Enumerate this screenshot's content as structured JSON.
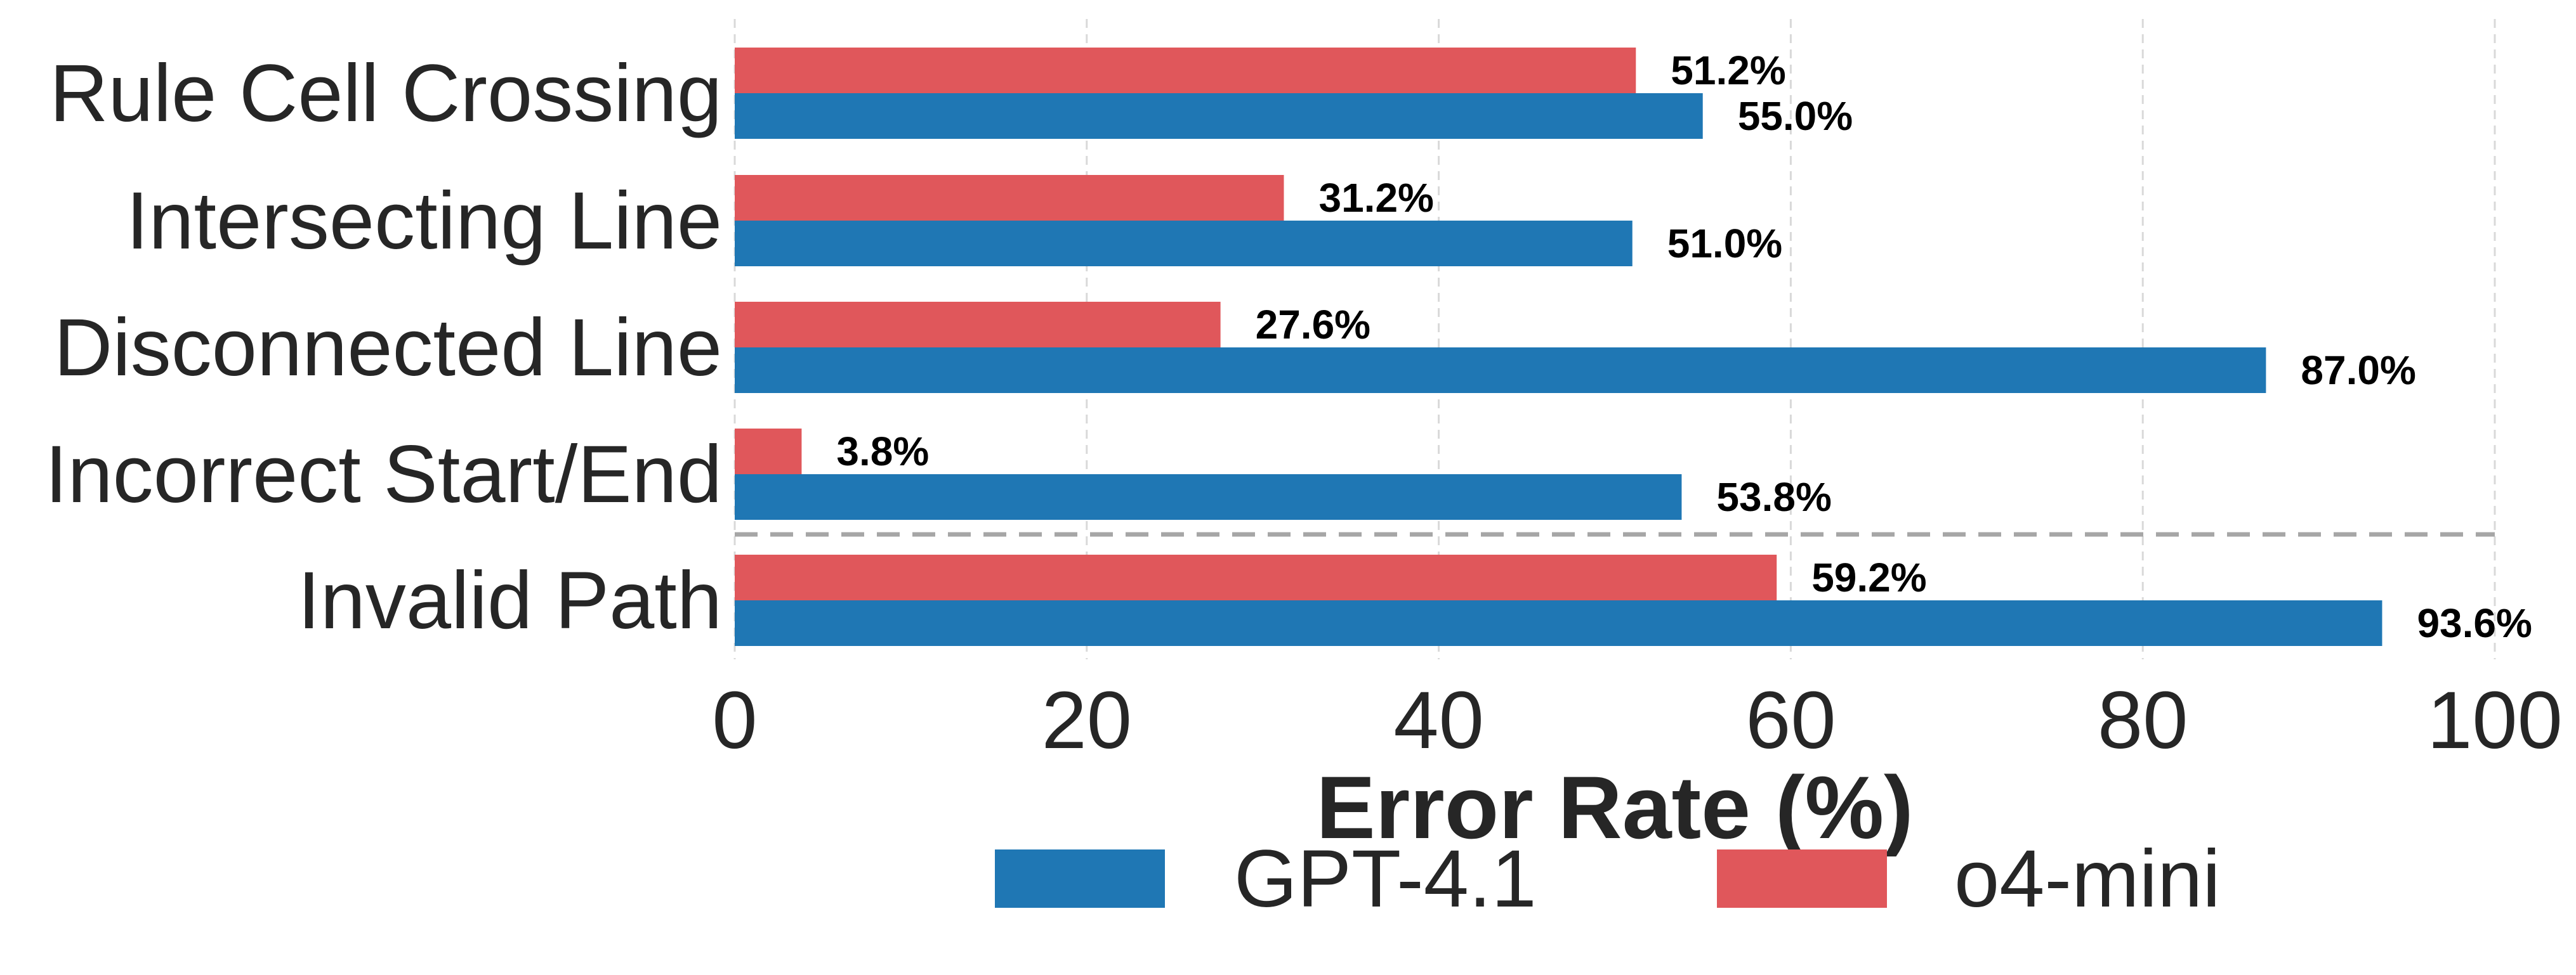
{
  "chart_data": {
    "type": "bar",
    "orientation": "horizontal",
    "title": "",
    "xlabel": "Error Rate (%)",
    "ylabel": "",
    "xlim": [
      0,
      100
    ],
    "xticks": [
      0,
      20,
      40,
      60,
      80,
      100
    ],
    "xtick_labels": [
      "0",
      "20",
      "40",
      "60",
      "80",
      "100"
    ],
    "grid": "vertical dashed gridlines",
    "legend_position": "bottom-center",
    "separator": "dashed horizontal line between Incorrect Start/End and Invalid Path",
    "categories": [
      "Rule Cell Crossing",
      "Intersecting Line",
      "Disconnected Line",
      "Incorrect Start/End",
      "Invalid Path"
    ],
    "series": [
      {
        "name": "GPT-4.1",
        "color": "#1f77b4",
        "values": [
          55.0,
          51.0,
          87.0,
          53.8,
          93.6
        ],
        "labels": [
          "55.0%",
          "51.0%",
          "87.0%",
          "53.8%",
          "93.6%"
        ]
      },
      {
        "name": "o4-mini",
        "color": "#e0575b",
        "values": [
          51.2,
          31.2,
          27.6,
          3.8,
          59.2
        ],
        "labels": [
          "51.2%",
          "31.2%",
          "27.6%",
          "3.8%",
          "59.2%"
        ]
      }
    ]
  }
}
